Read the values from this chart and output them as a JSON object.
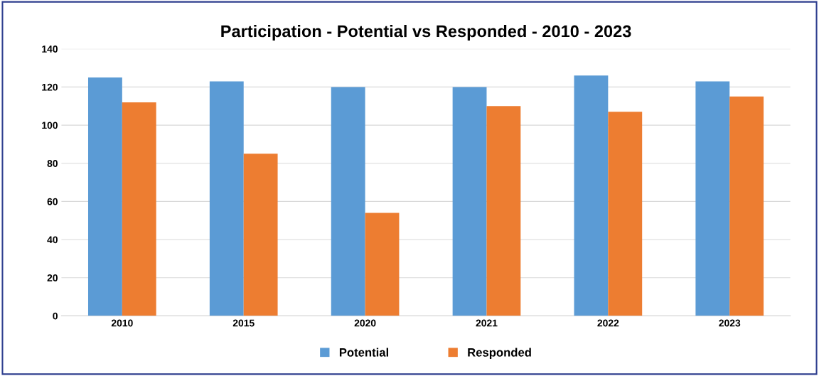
{
  "chart_data": {
    "type": "bar",
    "title": "Participation - Potential vs Responded - 2010 - 2023",
    "categories": [
      "2010",
      "2015",
      "2020",
      "2021",
      "2022",
      "2023"
    ],
    "series": [
      {
        "name": "Potential",
        "color": "#5b9bd5",
        "values": [
          125,
          123,
          120,
          120,
          126,
          123
        ]
      },
      {
        "name": "Responded",
        "color": "#ed7d31",
        "values": [
          112,
          85,
          54,
          110,
          107,
          115
        ]
      }
    ],
    "ylim": [
      0,
      140
    ],
    "yticks": [
      0,
      20,
      40,
      60,
      80,
      100,
      120,
      140
    ],
    "grid": "y",
    "legend": "bottom"
  }
}
